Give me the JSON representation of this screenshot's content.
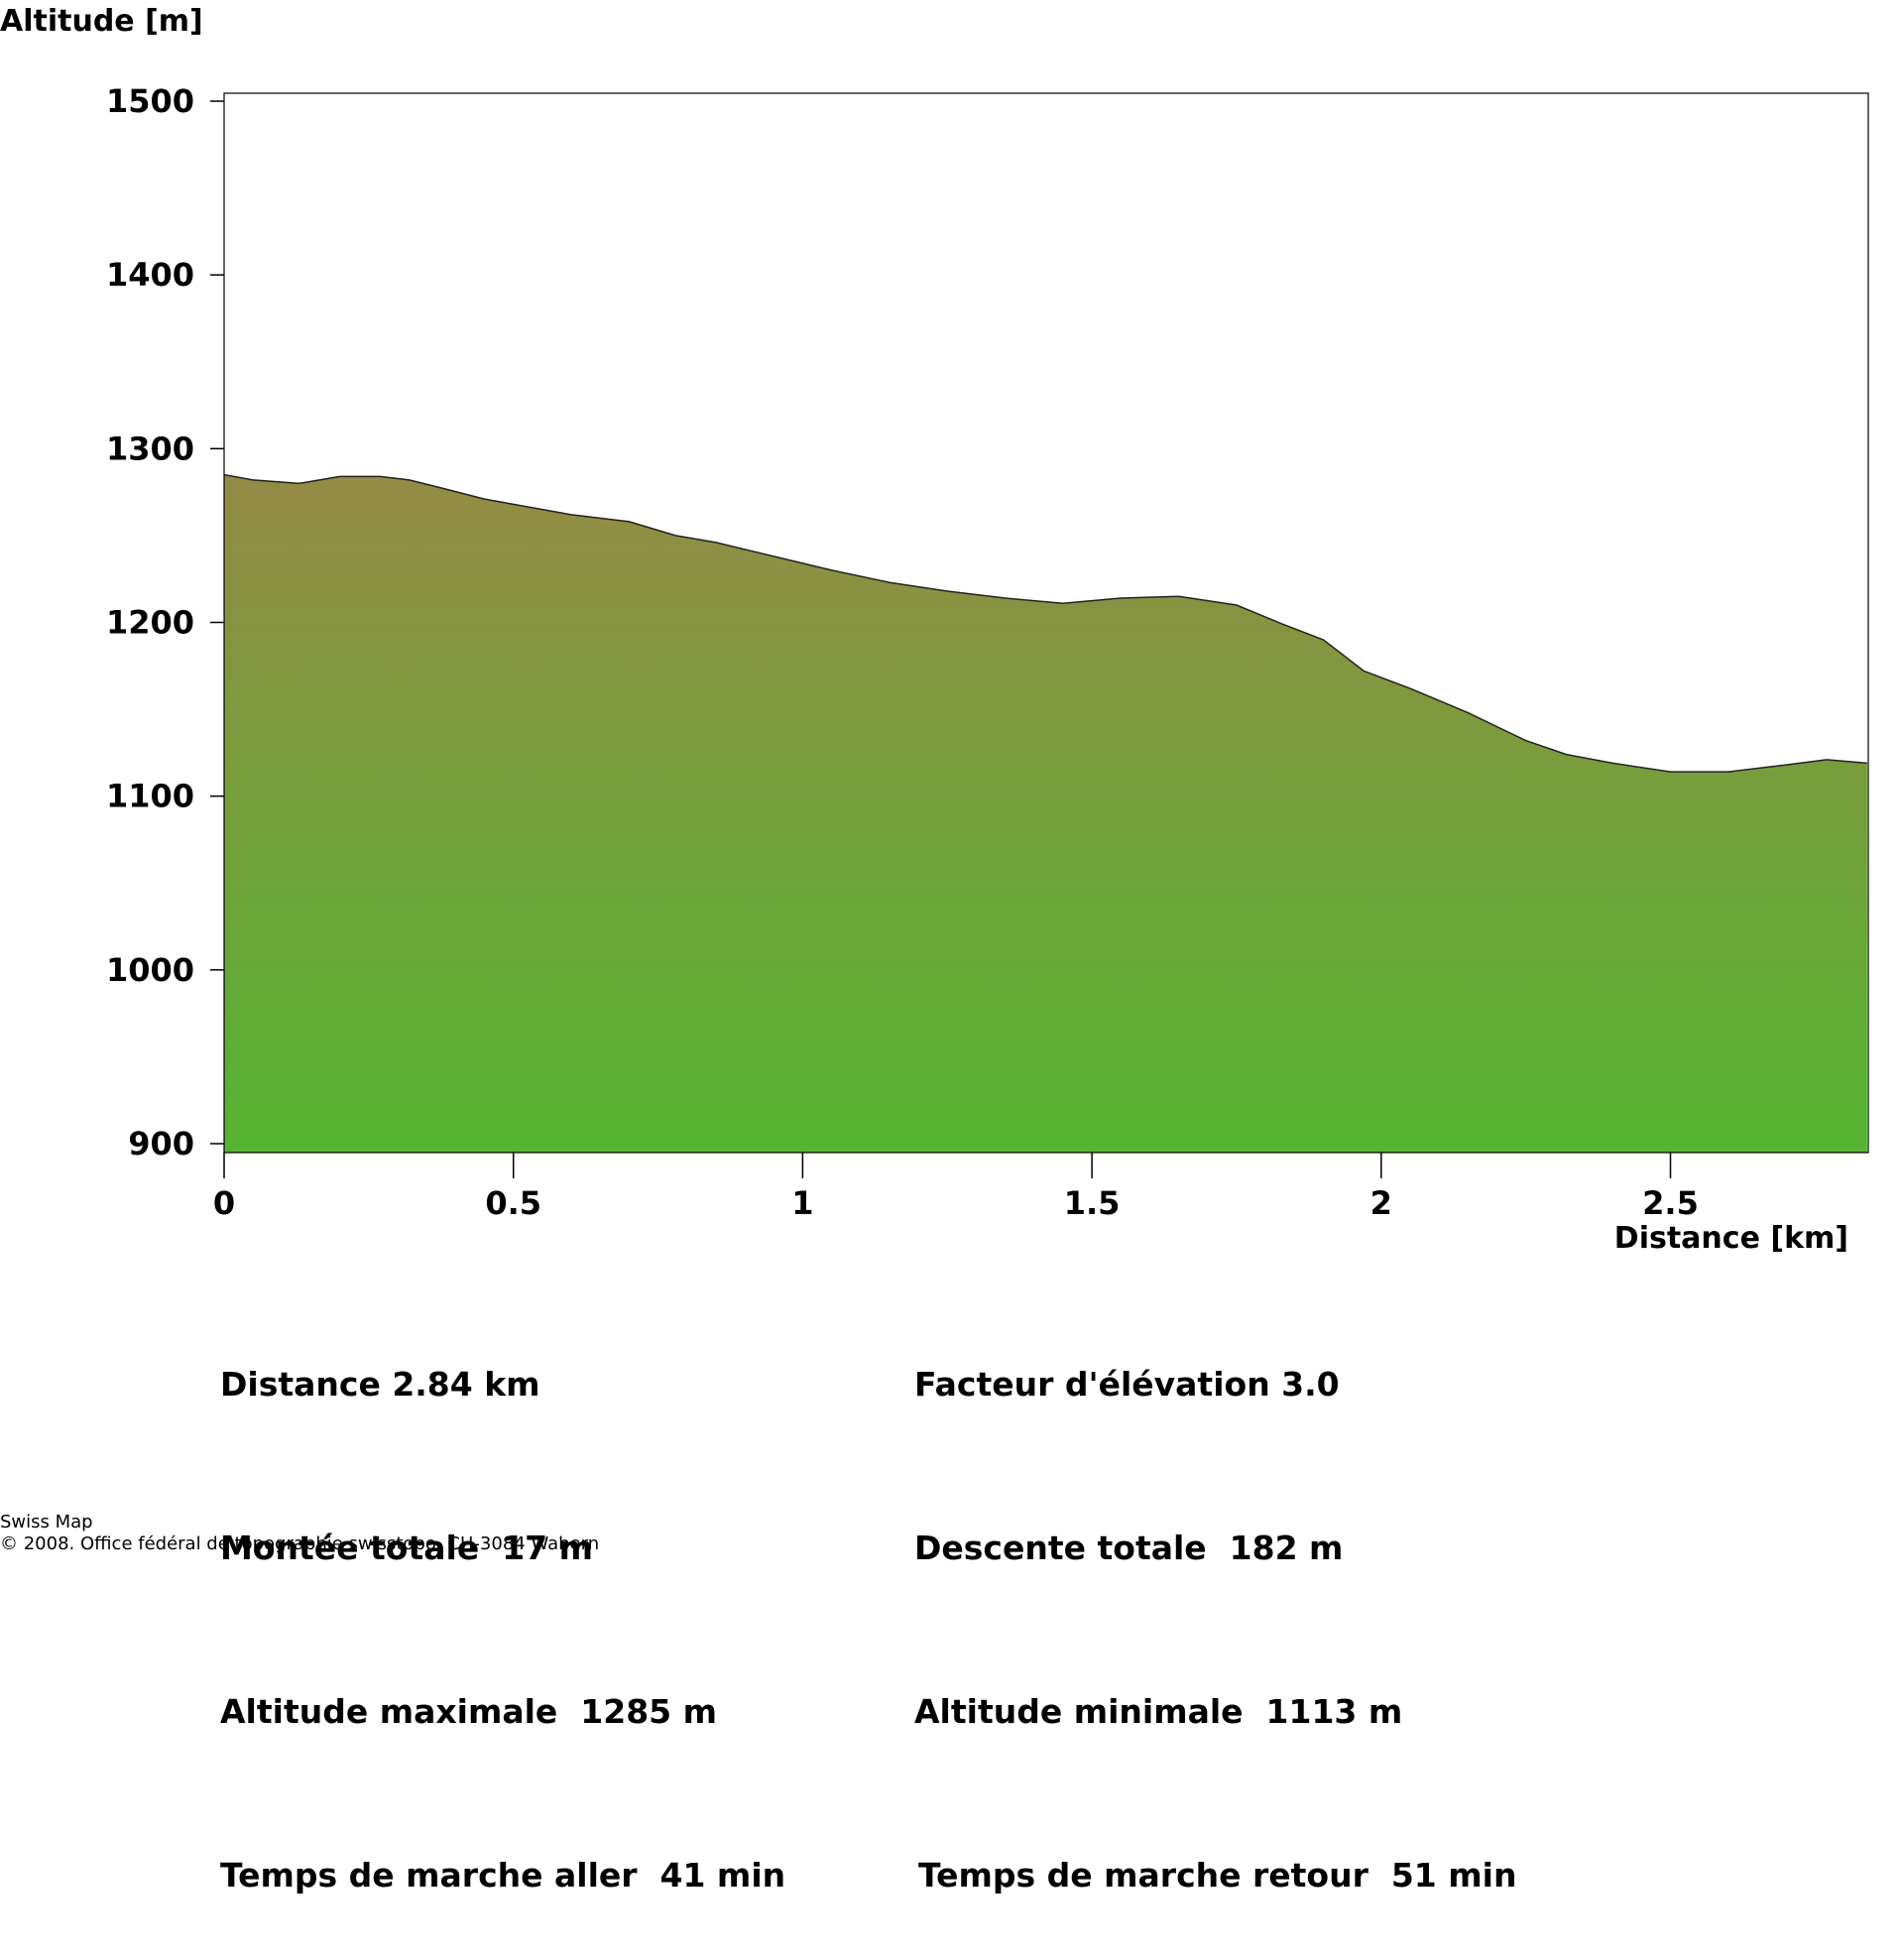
{
  "chart_data": {
    "type": "area",
    "ylabel": "Altitude [m]",
    "xlabel": "Distance [km]",
    "xlim": [
      0,
      2.84
    ],
    "ylim": [
      900,
      1500
    ],
    "x_ticks": [
      0,
      0.5,
      1,
      1.5,
      2,
      2.5
    ],
    "x_tick_labels": [
      "0",
      "0.5",
      "1",
      "1.5",
      "2",
      "2.5"
    ],
    "y_ticks": [
      900,
      1000,
      1100,
      1200,
      1300,
      1400,
      1500
    ],
    "y_tick_labels": [
      "900",
      "1000",
      "1100",
      "1200",
      "1300",
      "1400",
      "1500"
    ],
    "grid": false,
    "fill_color_top": "#948b44",
    "fill_color_bottom": "#55b433",
    "x": [
      0,
      0.05,
      0.13,
      0.2,
      0.27,
      0.32,
      0.38,
      0.45,
      0.5,
      0.55,
      0.6,
      0.7,
      0.78,
      0.85,
      0.95,
      1.05,
      1.15,
      1.25,
      1.35,
      1.45,
      1.55,
      1.65,
      1.75,
      1.83,
      1.9,
      1.97,
      2.05,
      2.15,
      2.25,
      2.32,
      2.4,
      2.5,
      2.6,
      2.7,
      2.77,
      2.84
    ],
    "y": [
      1285,
      1282,
      1280,
      1284,
      1284,
      1282,
      1277,
      1271,
      1268,
      1265,
      1262,
      1258,
      1250,
      1246,
      1238,
      1230,
      1223,
      1218,
      1214,
      1211,
      1214,
      1215,
      1210,
      1199,
      1190,
      1172,
      1162,
      1148,
      1132,
      1124,
      1119,
      1114,
      1114,
      1118,
      1121,
      1119
    ]
  },
  "stats": {
    "left": [
      "Distance 2.84 km",
      "Montée totale  17 m",
      "Altitude maximale  1285 m",
      "Temps de marche aller  41 min"
    ],
    "right": [
      "Facteur d'élévation 3.0",
      "Descente totale  182 m",
      "Altitude minimale  1113 m",
      "Temps de marche retour  51 min"
    ]
  },
  "footer": {
    "line1": "Swiss Map",
    "line2": "© 2008. Office fédéral de topographie swisstopo, CH-3084 Wabern"
  }
}
